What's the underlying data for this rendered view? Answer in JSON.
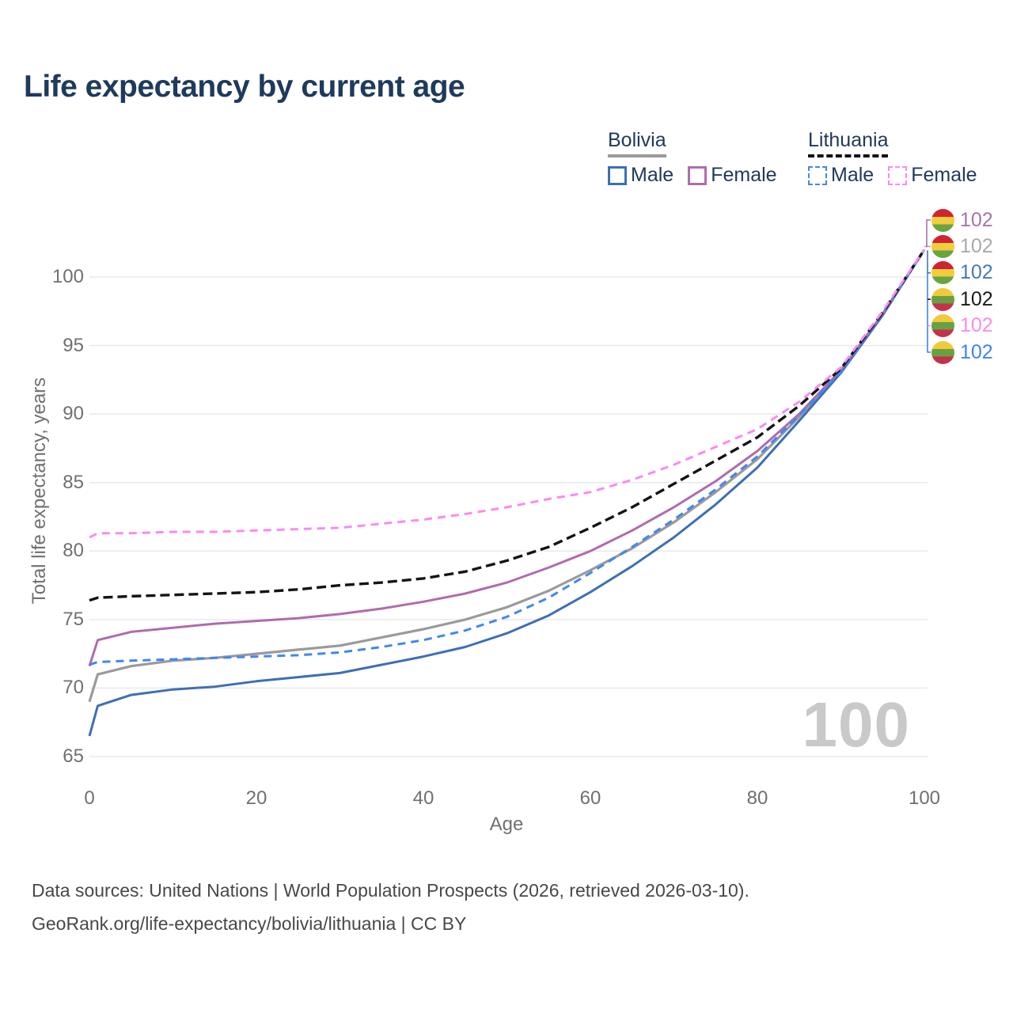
{
  "title": "Life expectancy by current age",
  "legend": {
    "groups": [
      {
        "label": "Bolivia",
        "line_style": "solid",
        "line_color": "#9b9b9b",
        "items": [
          {
            "label": "Male",
            "color": "#3d6fb5",
            "dashed": false
          },
          {
            "label": "Female",
            "color": "#af6cad",
            "dashed": false
          }
        ]
      },
      {
        "label": "Lithuania",
        "line_style": "dashed",
        "line_color": "#141414",
        "items": [
          {
            "label": "Male",
            "color": "#4287f0",
            "dashed": true
          },
          {
            "label": "Female",
            "color": "#fb8af0",
            "dashed": true
          }
        ]
      }
    ]
  },
  "flags": {
    "bolivia": [
      "#cf2433",
      "#f2cd3d",
      "#6aa343"
    ],
    "lithuania": [
      "#f2c93a",
      "#68a143",
      "#c5314a"
    ]
  },
  "annotations": {
    "hover_age_label": "100"
  },
  "footer": {
    "line1": "Data sources: United Nations | World Population Prospects (2026, retrieved 2026-03-10).",
    "line2": "GeoRank.org/life-expectancy/bolivia/lithuania | CC BY"
  },
  "chart_data": {
    "type": "line",
    "title": "Life expectancy by current age",
    "xlabel": "Age",
    "ylabel": "Total life expectancy, years",
    "xlim": [
      0,
      100
    ],
    "ylim": [
      65,
      103.5
    ],
    "xticks": [
      0,
      20,
      40,
      60,
      80,
      100
    ],
    "yticks": [
      65,
      70,
      75,
      80,
      85,
      90,
      95,
      100
    ],
    "grid": "horizontal",
    "legend_position": "top-right",
    "x": [
      0,
      1,
      5,
      10,
      15,
      20,
      25,
      30,
      35,
      40,
      45,
      50,
      55,
      60,
      65,
      70,
      75,
      80,
      85,
      90,
      95,
      100
    ],
    "series": [
      {
        "id": "bolivia-all",
        "country": "Bolivia",
        "sex": "All",
        "flag": "bolivia",
        "color": "#9a9a9a",
        "dashed": false,
        "width": 3.2,
        "label_row": 1,
        "label_color": "#a9a9a9",
        "end_label": "102",
        "values": [
          69.0,
          71.0,
          71.6,
          72.0,
          72.2,
          72.5,
          72.8,
          73.1,
          73.7,
          74.3,
          75.0,
          75.9,
          77.1,
          78.6,
          80.2,
          82.1,
          84.3,
          86.7,
          89.8,
          93.1,
          97.3,
          102
        ]
      },
      {
        "id": "bolivia-male",
        "country": "Bolivia",
        "sex": "Male",
        "flag": "bolivia",
        "color": "#3d6fb5",
        "dashed": false,
        "width": 3,
        "label_row": 2,
        "label_color": "#4678b8",
        "end_label": "102",
        "values": [
          66.5,
          68.7,
          69.5,
          69.9,
          70.1,
          70.5,
          70.8,
          71.1,
          71.7,
          72.3,
          73.0,
          74.0,
          75.3,
          77.0,
          78.9,
          81.0,
          83.4,
          86.1,
          89.5,
          93.0,
          97.2,
          102
        ]
      },
      {
        "id": "bolivia-female",
        "country": "Bolivia",
        "sex": "Female",
        "flag": "bolivia",
        "color": "#af6cad",
        "dashed": false,
        "width": 3,
        "label_row": 0,
        "label_color": "#a873aa",
        "end_label": "102",
        "values": [
          71.6,
          73.5,
          74.1,
          74.4,
          74.7,
          74.9,
          75.1,
          75.4,
          75.8,
          76.3,
          76.9,
          77.7,
          78.8,
          80.0,
          81.5,
          83.2,
          85.1,
          87.3,
          90.0,
          93.2,
          97.3,
          102
        ]
      },
      {
        "id": "lithuania-male",
        "country": "Lithuania",
        "sex": "Male",
        "flag": "lithuania",
        "color": "#4287f0",
        "dashed": true,
        "dash": "10 7",
        "width": 3,
        "label_row": 5,
        "label_color": "#3f83f2",
        "end_label": "102",
        "values": [
          71.7,
          71.9,
          72.0,
          72.1,
          72.2,
          72.3,
          72.4,
          72.6,
          73.0,
          73.5,
          74.2,
          75.2,
          76.6,
          78.4,
          80.3,
          82.3,
          84.5,
          86.9,
          89.9,
          93.1,
          97.3,
          102
        ]
      },
      {
        "id": "lithuania-all",
        "country": "Lithuania",
        "sex": "All",
        "flag": "lithuania",
        "color": "#141414",
        "dashed": true,
        "dash": "12 6",
        "width": 3.4,
        "label_row": 3,
        "label_color": "#1a1a1a",
        "end_label": "102",
        "values": [
          76.4,
          76.6,
          76.7,
          76.8,
          76.9,
          77.0,
          77.2,
          77.5,
          77.7,
          78.0,
          78.5,
          79.3,
          80.3,
          81.7,
          83.2,
          84.9,
          86.6,
          88.3,
          90.6,
          93.3,
          97.4,
          102
        ]
      },
      {
        "id": "lithuania-female",
        "country": "Lithuania",
        "sex": "Female",
        "flag": "lithuania",
        "color": "#fb8af0",
        "dashed": true,
        "dash": "10 7",
        "width": 3,
        "label_row": 4,
        "label_color": "#fb8af0",
        "end_label": "102",
        "values": [
          81.0,
          81.3,
          81.3,
          81.4,
          81.4,
          81.5,
          81.6,
          81.7,
          82.0,
          82.3,
          82.7,
          83.2,
          83.8,
          84.3,
          85.2,
          86.3,
          87.6,
          88.9,
          90.9,
          93.4,
          97.5,
          102
        ]
      }
    ]
  }
}
